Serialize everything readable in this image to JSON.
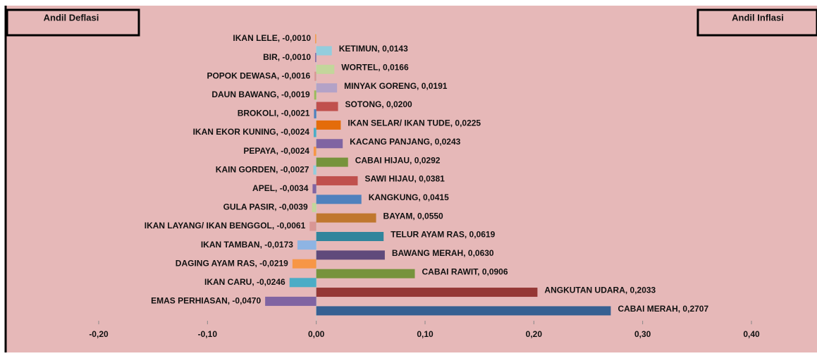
{
  "chart_data": {
    "type": "bar",
    "orientation": "horizontal",
    "xlim": [
      -0.2,
      0.4
    ],
    "xticks": [
      {
        "value": -0.2,
        "label": "-0,20"
      },
      {
        "value": -0.1,
        "label": "-0,10"
      },
      {
        "value": 0,
        "label": "0,00"
      },
      {
        "value": 0.1,
        "label": "0,10"
      },
      {
        "value": 0.2,
        "label": "0,20"
      },
      {
        "value": 0.3,
        "label": "0,30"
      },
      {
        "value": 0.4,
        "label": "0,40"
      }
    ],
    "series": [
      {
        "name": "Andil Deflasi",
        "values": [
          -0.001,
          -0.001,
          -0.0016,
          -0.0019,
          -0.0021,
          -0.0024,
          -0.0024,
          -0.0027,
          -0.0034,
          -0.0039,
          -0.0061,
          -0.0173,
          -0.0219,
          -0.0246,
          -0.047
        ],
        "value_labels": [
          "IKAN LELE, -0,0010",
          "BIR, -0,0010",
          "POPOK DEWASA, -0,0016",
          "DAUN BAWANG, -0,0019",
          "BROKOLI, -0,0021",
          "IKAN EKOR KUNING, -0,0024",
          "PEPAYA, -0,0024",
          "KAIN GORDEN, -0,0027",
          "APEL, -0,0034",
          "GULA PASIR, -0,0039",
          "IKAN LAYANG/ IKAN BENGGOL, -0,0061",
          "IKAN TAMBAN, -0,0173",
          "DAGING AYAM RAS, -0,0219",
          "IKAN CARU, -0,0246",
          "EMAS PERHIASAN, -0,0470"
        ],
        "colors": [
          "#f79646",
          "#8064a2",
          "#d99694",
          "#9bbb59",
          "#4f81bd",
          "#4bacc6",
          "#f79646",
          "#93cddd",
          "#8064a2",
          "#c3d69b",
          "#d99694",
          "#8eb4e3",
          "#f79646",
          "#4bacc6",
          "#8064a2"
        ]
      },
      {
        "name": "Andil Inflasi",
        "values": [
          0.0143,
          0.0166,
          0.0191,
          0.02,
          0.0225,
          0.0243,
          0.0292,
          0.0381,
          0.0415,
          0.055,
          0.0619,
          0.063,
          0.0906,
          0.2033,
          0.2707
        ],
        "value_labels": [
          "KETIMUN, 0,0143",
          "WORTEL, 0,0166",
          "MINYAK GORENG, 0,0191",
          "SOTONG, 0,0200",
          "IKAN SELAR/ IKAN TUDE, 0,0225",
          "KACANG PANJANG, 0,0243",
          "CABAI HIJAU, 0,0292",
          "SAWI HIJAU, 0,0381",
          "KANGKUNG, 0,0415",
          "BAYAM, 0,0550",
          "TELUR AYAM RAS, 0,0619",
          "BAWANG MERAH, 0,0630",
          "CABAI RAWIT, 0,0906",
          "ANGKUTAN UDARA, 0,2033",
          "CABAI MERAH, 0,2707"
        ],
        "colors": [
          "#93cddd",
          "#c3d69b",
          "#b3a2c7",
          "#c0504d",
          "#e46c0a",
          "#8064a2",
          "#77933c",
          "#c0504d",
          "#4f81bd",
          "#c0772e",
          "#31859c",
          "#604a7b",
          "#77933c",
          "#953735",
          "#366092"
        ]
      }
    ]
  }
}
